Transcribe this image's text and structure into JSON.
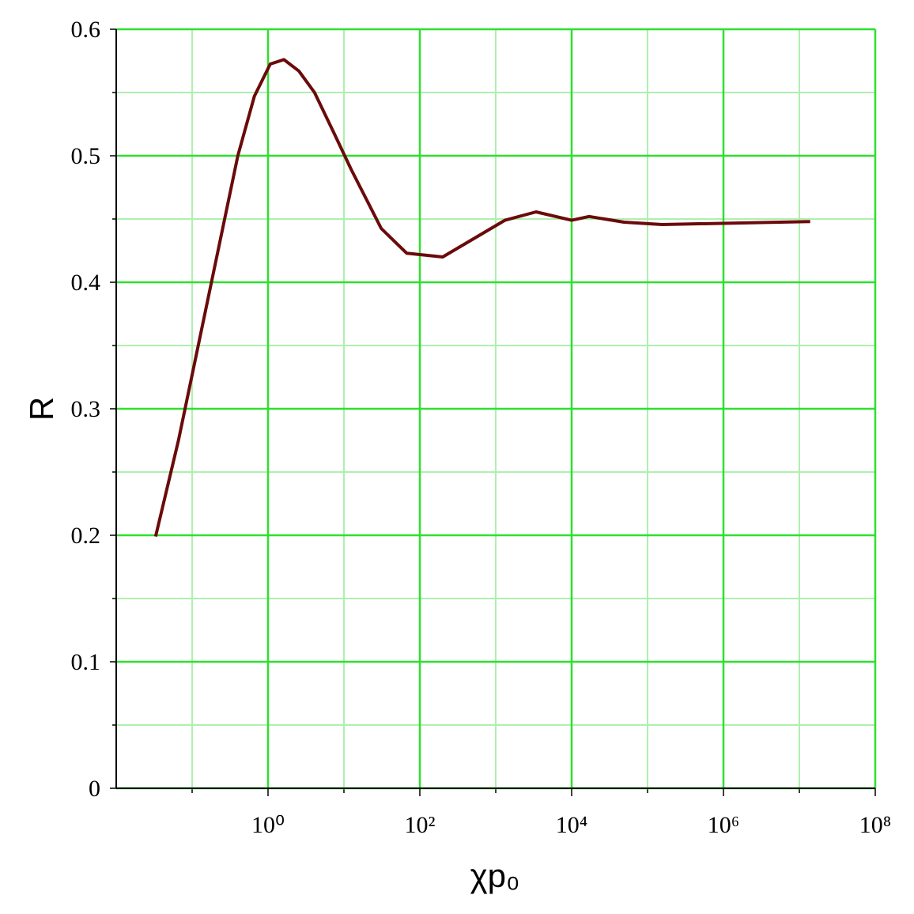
{
  "chart_data": {
    "type": "line",
    "xlabel": "χp₀",
    "ylabel": "R",
    "xscale": "log",
    "grid": true,
    "xlim": [
      0.01,
      100000000
    ],
    "ylim": [
      0,
      0.6
    ],
    "xticks": [
      {
        "value": 1,
        "label": "10⁰"
      },
      {
        "value": 100,
        "label": "10²"
      },
      {
        "value": 10000,
        "label": "10⁴"
      },
      {
        "value": 1000000,
        "label": "10⁶"
      },
      {
        "value": 100000000,
        "label": "10⁸"
      }
    ],
    "yticks": [
      0,
      0.1,
      0.2,
      0.3,
      0.4,
      0.5,
      0.6
    ],
    "x_minor_grid": [
      0.1,
      10,
      1000,
      100000,
      10000000
    ],
    "y_minor_grid": [
      0.05,
      0.15,
      0.25,
      0.35,
      0.45,
      0.55
    ],
    "grid_color": "#2ee02e",
    "minor_grid_color": "#aef0ae",
    "x": [
      0.033,
      0.066,
      0.4,
      0.66,
      1.07,
      1.62,
      2.55,
      4.1,
      7.4,
      12.5,
      31,
      67,
      200,
      1320,
      3400,
      10000,
      17000,
      49000,
      155000,
      13900000
    ],
    "series": [
      {
        "color": "#6b0a0a",
        "values": [
          0.199,
          0.275,
          0.5,
          0.547,
          0.5725,
          0.576,
          0.567,
          0.55,
          0.518,
          0.489,
          0.4425,
          0.423,
          0.42,
          0.449,
          0.4556,
          0.449,
          0.452,
          0.4475,
          0.4456,
          0.448
        ]
      }
    ]
  }
}
